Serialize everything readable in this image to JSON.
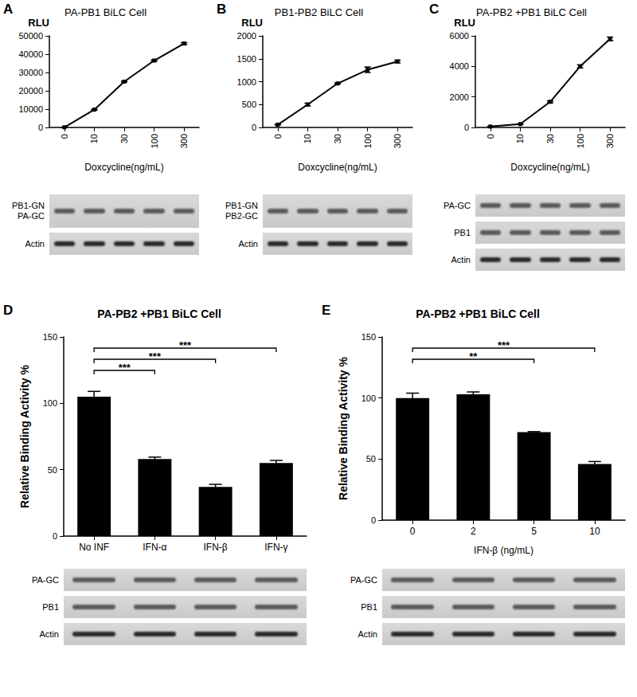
{
  "chart_data": [
    {
      "panel": "A",
      "type": "line",
      "title": "PA-PB1 BiLC Cell",
      "categories": [
        "0",
        "10",
        "30",
        "100",
        "300"
      ],
      "values": [
        100,
        9700,
        25000,
        36500,
        45800
      ],
      "errors": [
        20,
        200,
        200,
        400,
        500
      ],
      "ylim": [
        0,
        50000
      ],
      "yticks": [
        0,
        10000,
        20000,
        30000,
        40000,
        50000
      ],
      "ylabel": "RLU",
      "xlabel": "Doxcycline(ng/mL)",
      "color": "#000000",
      "marker": "square",
      "grid": false,
      "blots": [
        {
          "labels": [
            "PB1-GN",
            "PA-GC"
          ]
        },
        {
          "labels": [
            "Actin"
          ]
        }
      ]
    },
    {
      "panel": "B",
      "type": "line",
      "title": "PB1-PB2 BiLC Cell",
      "categories": [
        "0",
        "10",
        "30",
        "100",
        "300"
      ],
      "values": [
        60,
        500,
        960,
        1260,
        1440
      ],
      "errors": [
        5,
        30,
        10,
        60,
        30
      ],
      "ylim": [
        0,
        2000
      ],
      "yticks": [
        0,
        500,
        1000,
        1500,
        2000
      ],
      "ylabel": "RLU",
      "xlabel": "Doxcycline(ng/mL)",
      "color": "#000000",
      "marker": "square",
      "grid": false,
      "blots": [
        {
          "labels": [
            "PB1-GN",
            "PB2-GC"
          ]
        },
        {
          "labels": [
            "Actin"
          ]
        }
      ]
    },
    {
      "panel": "C",
      "type": "line",
      "title": "PA-PB2 +PB1 BiLC Cell",
      "categories": [
        "0",
        "10",
        "30",
        "100",
        "300"
      ],
      "values": [
        60,
        220,
        1680,
        4000,
        5800
      ],
      "errors": [
        10,
        10,
        60,
        100,
        120
      ],
      "ylim": [
        0,
        6000
      ],
      "yticks": [
        0,
        2000,
        4000,
        6000
      ],
      "ylabel": "RLU",
      "xlabel": "Doxcycline(ng/mL)",
      "color": "#000000",
      "marker": "square",
      "grid": false,
      "blots": [
        {
          "labels": [
            "PA-GC"
          ]
        },
        {
          "labels": [
            "PB1"
          ]
        },
        {
          "labels": [
            "Actin"
          ]
        }
      ]
    },
    {
      "panel": "D",
      "type": "bar",
      "title": "PA-PB2 +PB1 BiLC Cell",
      "categories": [
        "No INF",
        "IFN-α",
        "IFN-β",
        "IFN-γ"
      ],
      "values": [
        105,
        58,
        37,
        55
      ],
      "errors": [
        4,
        1.5,
        2,
        2
      ],
      "ylim": [
        0,
        150
      ],
      "yticks": [
        0,
        50,
        100,
        150
      ],
      "ylabel": "Relative Binding Activity %",
      "color": "#000000",
      "grid": false,
      "significance": [
        {
          "from": "No INF",
          "to": "IFN-α",
          "label": "***"
        },
        {
          "from": "No INF",
          "to": "IFN-β",
          "label": "***"
        },
        {
          "from": "No INF",
          "to": "IFN-γ",
          "label": "***"
        }
      ],
      "blots": [
        {
          "labels": [
            "PA-GC"
          ]
        },
        {
          "labels": [
            "PB1"
          ]
        },
        {
          "labels": [
            "Actin"
          ]
        }
      ]
    },
    {
      "panel": "E",
      "type": "bar",
      "title": "PA-PB2 +PB1 BiLC Cell",
      "categories": [
        "0",
        "2",
        "5",
        "10"
      ],
      "values": [
        100,
        103,
        72,
        46
      ],
      "errors": [
        4,
        2,
        0.5,
        2
      ],
      "ylim": [
        0,
        150
      ],
      "yticks": [
        0,
        50,
        100,
        150
      ],
      "ylabel": "Relative Binding Activity %",
      "xlabel": "IFN-β (ng/mL)",
      "color": "#000000",
      "grid": false,
      "significance": [
        {
          "from": "0",
          "to": "5",
          "label": "**"
        },
        {
          "from": "0",
          "to": "10",
          "label": "***"
        }
      ],
      "blots": [
        {
          "labels": [
            "PA-GC"
          ]
        },
        {
          "labels": [
            "PB1"
          ]
        },
        {
          "labels": [
            "Actin"
          ]
        }
      ]
    }
  ]
}
